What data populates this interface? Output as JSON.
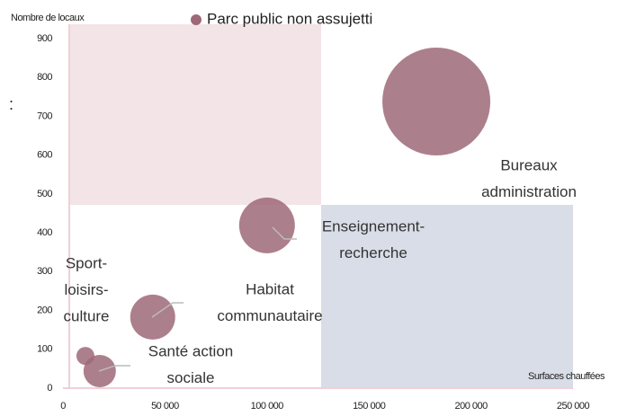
{
  "chart_data": {
    "type": "bubble",
    "legend": "Parc public non assujetti",
    "y_label": "Nombre de locaux",
    "x_label": "Surfaces chauffées",
    "annotation": ":",
    "color": "#9d6878",
    "xlim": [
      0,
      250000
    ],
    "ylim": [
      0,
      900
    ],
    "xticks": [
      0,
      {
        "value": 50000,
        "label": "50 000"
      },
      {
        "value": 100000,
        "label": "100 000"
      },
      {
        "value": 150000,
        "label": "150 000"
      },
      {
        "value": 200000,
        "label": "200 000"
      },
      {
        "value": 250000,
        "label": "250 000"
      }
    ],
    "yticks": [
      0,
      100,
      200,
      300,
      400,
      500,
      600,
      700,
      800,
      900
    ],
    "points": [
      {
        "label": [
          "Bureaux",
          "administration"
        ],
        "x": 183000,
        "y": 738,
        "size": 3600
      },
      {
        "label": [
          "Enseignement-",
          "recherche"
        ],
        "x": 100000,
        "y": 419,
        "size": 960
      },
      {
        "label": [
          "Habitat",
          "communautaire"
        ],
        "x": 44000,
        "y": 183,
        "size": 625
      },
      {
        "label": [
          "Sport-",
          "loisirs-",
          "culture"
        ],
        "x": 11000,
        "y": 83,
        "size": 100
      },
      {
        "label": [
          "Santé action",
          "sociale"
        ],
        "x": 18000,
        "y": 44,
        "size": 324
      }
    ]
  }
}
